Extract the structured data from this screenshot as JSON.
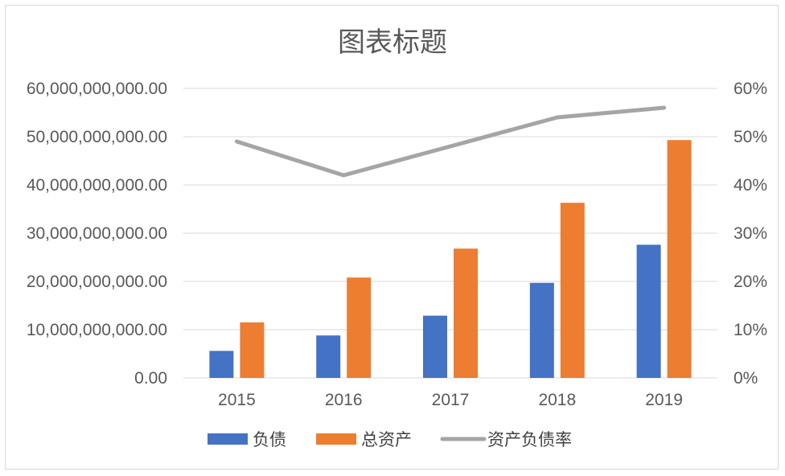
{
  "chart_data": {
    "type": "bar",
    "title": "图表标题",
    "categories": [
      "2015",
      "2016",
      "2017",
      "2018",
      "2019"
    ],
    "series": [
      {
        "name": "负债",
        "type": "bar",
        "axis": "left",
        "color": "#4472c4",
        "values": [
          5600000000,
          8800000000,
          12900000000,
          19700000000,
          27600000000
        ]
      },
      {
        "name": "总资产",
        "type": "bar",
        "axis": "left",
        "color": "#ed7d31",
        "values": [
          11500000000,
          20800000000,
          26800000000,
          36300000000,
          49300000000
        ]
      },
      {
        "name": "资产负债率",
        "type": "line",
        "axis": "right",
        "color": "#a5a5a5",
        "values": [
          0.49,
          0.42,
          0.48,
          0.54,
          0.56
        ]
      }
    ],
    "y_left": {
      "ylim": [
        0,
        60000000000
      ],
      "tick_labels": [
        "0.00",
        "10,000,000,000.00",
        "20,000,000,000.00",
        "30,000,000,000.00",
        "40,000,000,000.00",
        "50,000,000,000.00",
        "60,000,000,000.00"
      ]
    },
    "y_right": {
      "ylim": [
        0,
        0.6
      ],
      "tick_labels": [
        "0%",
        "10%",
        "20%",
        "30%",
        "40%",
        "50%",
        "60%"
      ]
    },
    "grid": true,
    "legend_position": "bottom"
  }
}
